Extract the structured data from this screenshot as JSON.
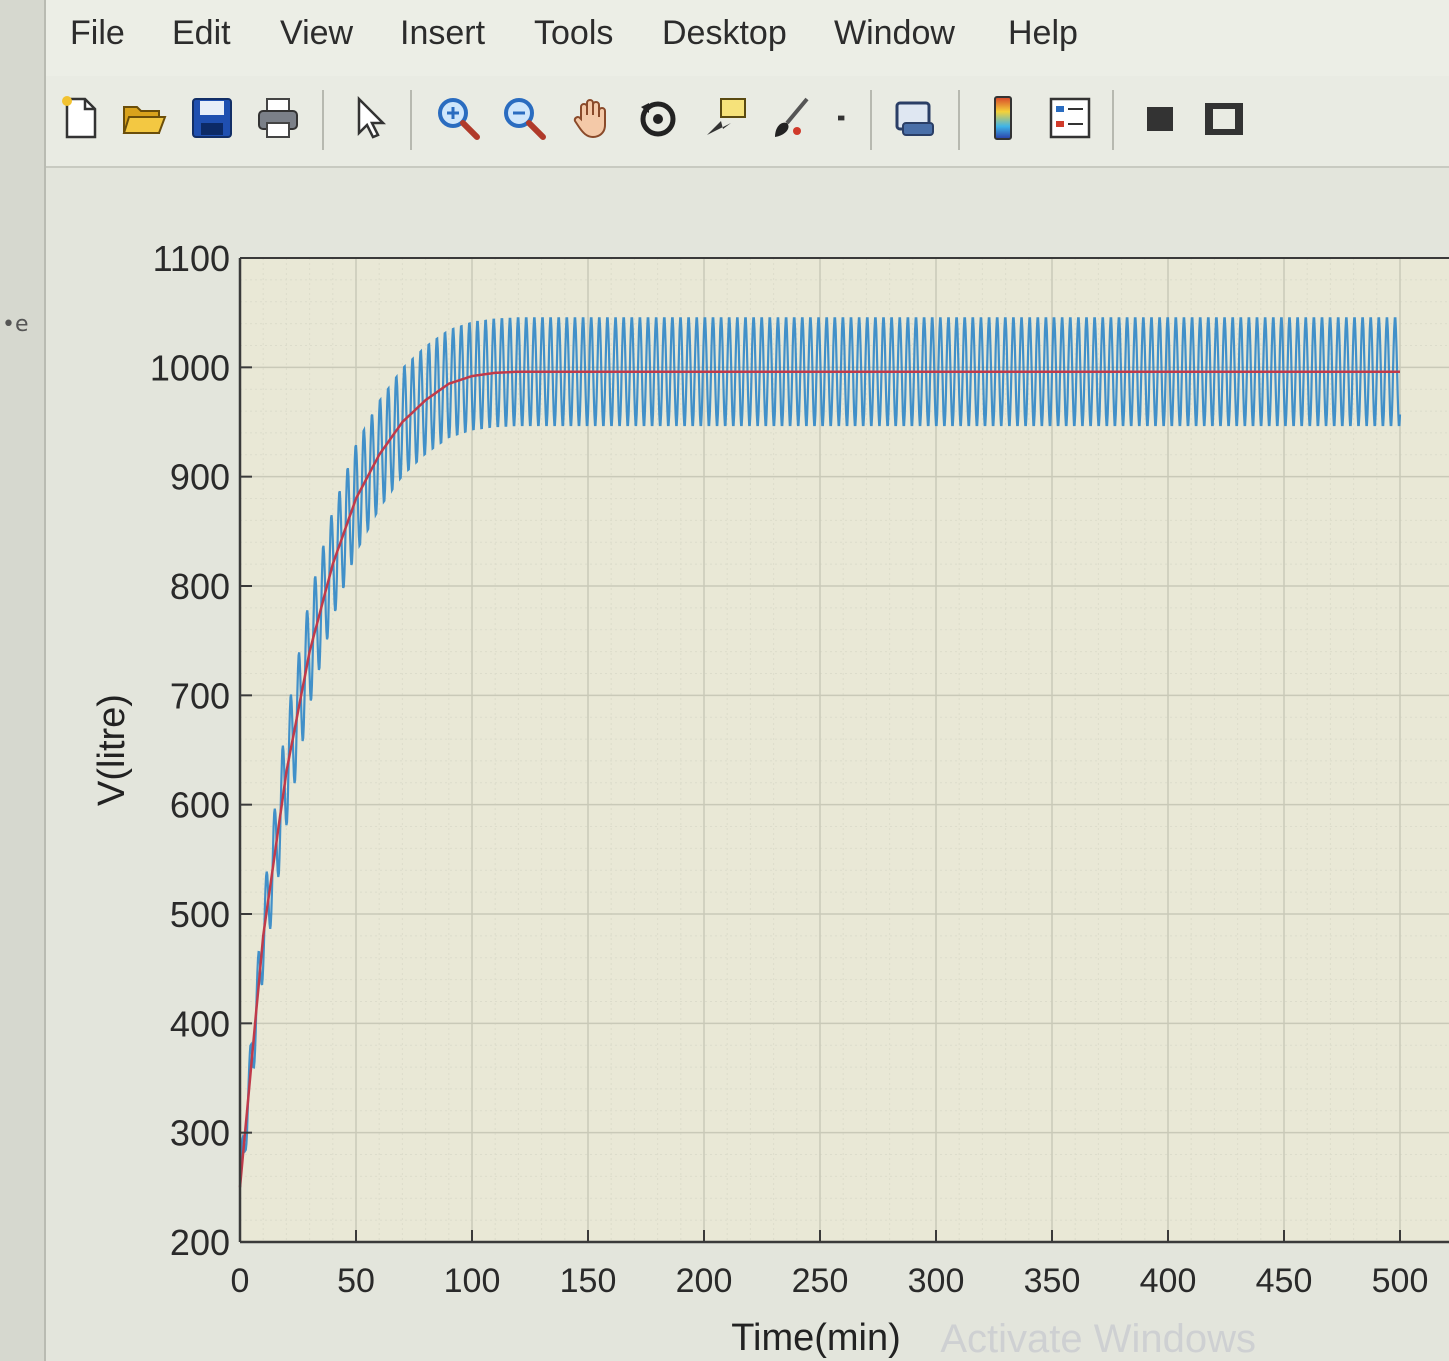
{
  "menu": {
    "items": [
      "File",
      "Edit",
      "View",
      "Insert",
      "Tools",
      "Desktop",
      "Window",
      "Help"
    ]
  },
  "toolbar": {
    "buttons": [
      {
        "name": "new-figure",
        "icon": "new-file-icon"
      },
      {
        "name": "open-file",
        "icon": "folder-open-icon"
      },
      {
        "name": "save-figure",
        "icon": "save-icon"
      },
      {
        "name": "print-figure",
        "icon": "printer-icon"
      },
      {
        "name": "edit-plot",
        "icon": "pointer-arrow-icon"
      },
      {
        "name": "zoom-in",
        "icon": "zoom-in-icon"
      },
      {
        "name": "zoom-out",
        "icon": "zoom-out-icon"
      },
      {
        "name": "pan",
        "icon": "hand-icon"
      },
      {
        "name": "rotate-3d",
        "icon": "rotate-icon"
      },
      {
        "name": "data-cursor",
        "icon": "data-cursor-icon"
      },
      {
        "name": "brush",
        "icon": "brush-icon"
      },
      {
        "name": "link-plot",
        "icon": "link-plot-icon"
      },
      {
        "name": "insert-colorbar",
        "icon": "colorbar-icon"
      },
      {
        "name": "insert-legend",
        "icon": "legend-icon"
      },
      {
        "name": "hide-plot-tools",
        "icon": "hide-tools-icon"
      },
      {
        "name": "show-plot-tools",
        "icon": "show-tools-icon"
      }
    ]
  },
  "chart_data": {
    "type": "line",
    "title": "",
    "xlabel": "Time(min)",
    "ylabel": "V(litre)",
    "xlim": [
      0,
      500
    ],
    "ylim": [
      200,
      1100
    ],
    "xticks": [
      0,
      50,
      100,
      150,
      200,
      250,
      300,
      350,
      400,
      450,
      500
    ],
    "yticks": [
      200,
      300,
      400,
      500,
      600,
      700,
      800,
      900,
      1000,
      1100
    ],
    "grid": true,
    "series": [
      {
        "color": "#2f86c8",
        "description": "oscillating volume around the mean curve",
        "oscillation_period": 3.5,
        "oscillation_amplitude": 50,
        "x": [
          0,
          10,
          20,
          30,
          40,
          50,
          60,
          70,
          80,
          90,
          100,
          110,
          120,
          150,
          200,
          300,
          400,
          500
        ],
        "y_center": [
          250,
          480,
          630,
          740,
          820,
          880,
          920,
          950,
          970,
          985,
          992,
          995,
          996,
          996,
          996,
          996,
          996,
          996
        ]
      },
      {
        "color": "#c03a4a",
        "description": "mean volume",
        "x": [
          0,
          10,
          20,
          30,
          40,
          50,
          60,
          70,
          80,
          90,
          100,
          110,
          120,
          150,
          200,
          300,
          400,
          500
        ],
        "y": [
          250,
          480,
          630,
          740,
          820,
          880,
          920,
          950,
          970,
          985,
          992,
          995,
          996,
          996,
          996,
          996,
          996,
          996
        ]
      }
    ],
    "watermark": "Activate Windows"
  },
  "colors": {
    "axes_bg": "#e9e8d6",
    "grid_major": "#c9c9b8",
    "grid_minor": "#dcdccb",
    "axis": "#3a3a3a",
    "tick_text": "#2a2a2a"
  }
}
